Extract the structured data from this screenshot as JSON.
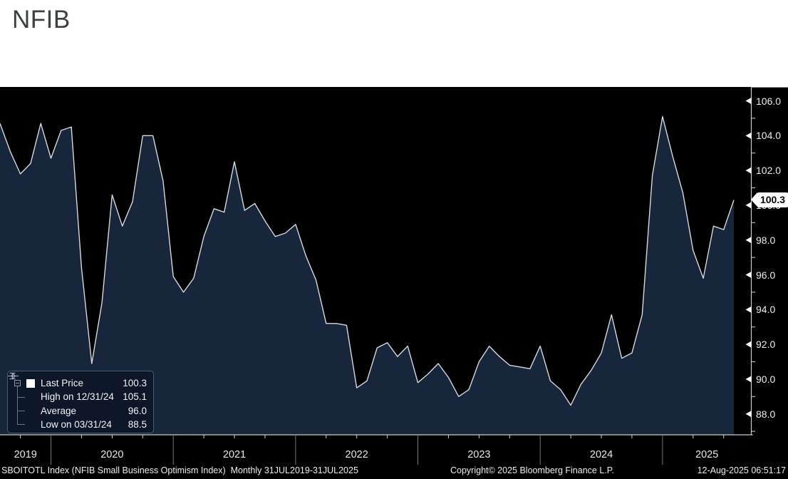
{
  "header": {
    "title": "NFIB"
  },
  "chart": {
    "background": "#000000",
    "area_fill": "#18263c",
    "line_color": "#d4d9de",
    "axis_color": "#c6cbd1",
    "last_price_badge": "100.3",
    "covered_axis_label": "100.0"
  },
  "legend": {
    "rows": [
      {
        "icon": "series-swatch",
        "label": "Last Price",
        "value": "100.3"
      },
      {
        "icon": "high-marker",
        "label": "High on 12/31/24",
        "value": "105.1"
      },
      {
        "icon": "average-marker",
        "label": "Average",
        "value": "96.0"
      },
      {
        "icon": "low-marker",
        "label": "Low on 03/31/24",
        "value": "88.5"
      }
    ]
  },
  "y_axis": {
    "major_ticks": [
      "106.0",
      "104.0",
      "102.0",
      "100.0",
      "98.0",
      "96.0",
      "94.0",
      "92.0",
      "90.0",
      "88.0"
    ]
  },
  "x_axis": {
    "year_labels": [
      "2019",
      "2020",
      "2021",
      "2022",
      "2023",
      "2024",
      "2025"
    ]
  },
  "status_bar": {
    "left": "SBOITOTL Index (NFIB Small Business Optimism Index)  Monthly 31JUL2019-31JUL2025",
    "center": "Copyright© 2025 Bloomberg Finance L.P.",
    "right": "12-Aug-2025 06:51:17"
  },
  "chart_data": {
    "type": "area",
    "title": "NFIB Small Business Optimism Index (SBOITOTL Index)",
    "frequency": "Monthly",
    "range": "31JUL2019-31JUL2025",
    "x": [
      "2019-07",
      "2019-08",
      "2019-09",
      "2019-10",
      "2019-11",
      "2019-12",
      "2020-01",
      "2020-02",
      "2020-03",
      "2020-04",
      "2020-05",
      "2020-06",
      "2020-07",
      "2020-08",
      "2020-09",
      "2020-10",
      "2020-11",
      "2020-12",
      "2021-01",
      "2021-02",
      "2021-03",
      "2021-04",
      "2021-05",
      "2021-06",
      "2021-07",
      "2021-08",
      "2021-09",
      "2021-10",
      "2021-11",
      "2021-12",
      "2022-01",
      "2022-02",
      "2022-03",
      "2022-04",
      "2022-05",
      "2022-06",
      "2022-07",
      "2022-08",
      "2022-09",
      "2022-10",
      "2022-11",
      "2022-12",
      "2023-01",
      "2023-02",
      "2023-03",
      "2023-04",
      "2023-05",
      "2023-06",
      "2023-07",
      "2023-08",
      "2023-09",
      "2023-10",
      "2023-11",
      "2023-12",
      "2024-01",
      "2024-02",
      "2024-03",
      "2024-04",
      "2024-05",
      "2024-06",
      "2024-07",
      "2024-08",
      "2024-09",
      "2024-10",
      "2024-11",
      "2024-12",
      "2025-01",
      "2025-02",
      "2025-03",
      "2025-04",
      "2025-05",
      "2025-06",
      "2025-07"
    ],
    "values": [
      104.7,
      103.1,
      101.8,
      102.4,
      104.7,
      102.7,
      104.3,
      104.5,
      96.4,
      90.9,
      94.4,
      100.6,
      98.8,
      100.2,
      104.0,
      104.0,
      101.4,
      95.9,
      95.0,
      95.8,
      98.2,
      99.8,
      99.6,
      102.5,
      99.7,
      100.1,
      99.1,
      98.2,
      98.4,
      98.9,
      97.1,
      95.7,
      93.2,
      93.2,
      93.1,
      89.5,
      89.9,
      91.8,
      92.1,
      91.3,
      91.9,
      89.8,
      90.3,
      90.9,
      90.1,
      89.0,
      89.4,
      91.0,
      91.9,
      91.3,
      90.8,
      90.7,
      90.6,
      91.9,
      89.9,
      89.4,
      88.5,
      89.7,
      90.5,
      91.5,
      93.7,
      91.2,
      91.5,
      93.7,
      101.7,
      105.1,
      102.8,
      100.7,
      97.4,
      95.8,
      98.8,
      98.6,
      100.3
    ],
    "last": 100.3,
    "high": {
      "date": "12/31/24",
      "value": 105.1
    },
    "average": 96.0,
    "low": {
      "date": "03/31/24",
      "value": 88.5
    },
    "ylim": [
      86.8,
      106.8
    ],
    "y_major_step": 2.0,
    "y_minor_step": 1.0,
    "grid": false,
    "legend_position": "bottom-left"
  }
}
